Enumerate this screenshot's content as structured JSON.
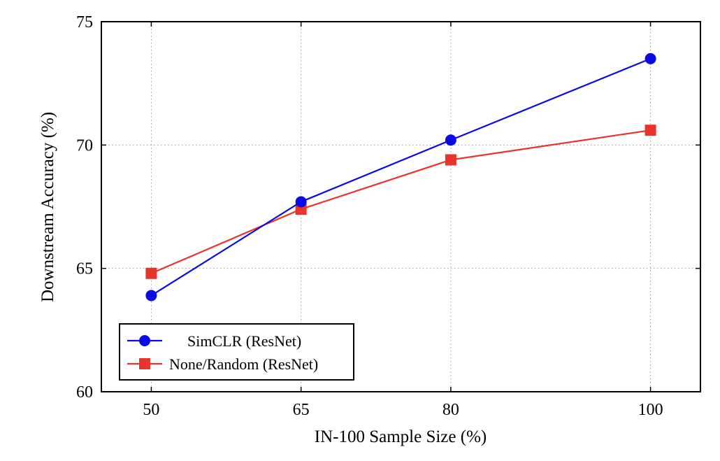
{
  "chart_data": {
    "type": "line",
    "title": "",
    "xlabel": "IN-100 Sample Size (%)",
    "ylabel": "Downstream Accuracy (%)",
    "x": [
      50,
      65,
      80,
      100
    ],
    "x_ticks": [
      "50",
      "65",
      "80",
      "100"
    ],
    "y_ticks": [
      "60",
      "65",
      "70",
      "75"
    ],
    "xlim": [
      45,
      105
    ],
    "ylim": [
      60,
      75
    ],
    "grid": true,
    "legend_position": "bottom-left",
    "series": [
      {
        "name": "SimCLR (ResNet)",
        "values": [
          63.9,
          67.7,
          70.2,
          73.5
        ],
        "color": "#0a0ae6",
        "marker": "circle"
      },
      {
        "name": "None/Random (ResNet)",
        "values": [
          64.8,
          67.4,
          69.4,
          70.6
        ],
        "color": "#e8342a",
        "marker": "square"
      }
    ]
  }
}
